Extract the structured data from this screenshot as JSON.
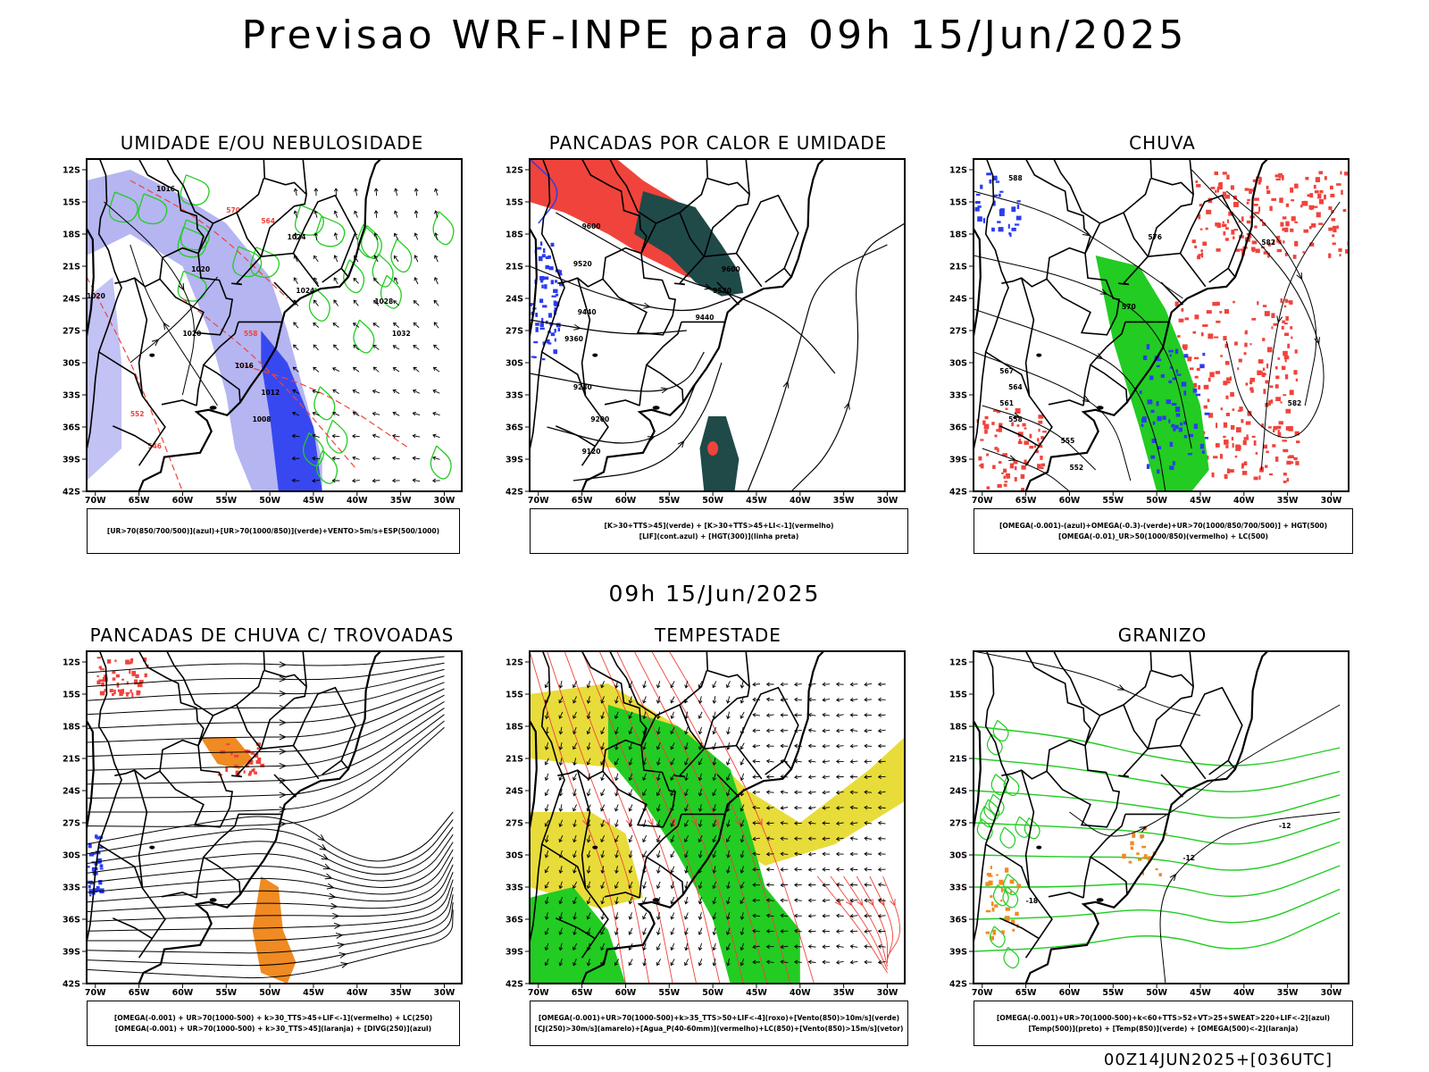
{
  "header": {
    "title": "Previsao WRF-INPE  para 09h 15/Jun/2025"
  },
  "middle_label": "09h 15/Jun/2025",
  "footer": "00Z14JUN2025+[036UTC]",
  "axes": {
    "lat_ticks": [
      "12S",
      "15S",
      "18S",
      "21S",
      "24S",
      "27S",
      "30S",
      "33S",
      "36S",
      "39S",
      "42S"
    ],
    "lon_ticks": [
      "70W",
      "65W",
      "60W",
      "55W",
      "50W",
      "45W",
      "40W",
      "35W",
      "30W"
    ],
    "lat_range": [
      -42,
      -11
    ],
    "lon_range": [
      -71,
      -28
    ]
  },
  "panels": [
    {
      "id": "umidade",
      "title": "UMIDADE E/OU NEBULOSIDADE",
      "legend": [
        "[UR>70(850/700/500)](azul)+[UR>70(1000/850)](verde)+VENTO>5m/s+ESP(500/1000)"
      ],
      "contour_labels": [
        "1016",
        "1020",
        "1024",
        "1020",
        "1016",
        "1012",
        "1008",
        "1020",
        "1024",
        "1028",
        "1032",
        "570",
        "564",
        "558",
        "552",
        "546"
      ]
    },
    {
      "id": "pancadas-calor",
      "title": "PANCADAS POR CALOR E UMIDADE",
      "legend": [
        "[K>30+TTS>45](verde) + [K>30+TTS>45+LI<-1](vermelho)",
        "[LIF](cont.azul) + [HGT(300)](linha preta)"
      ],
      "contour_labels": [
        "9600",
        "9520",
        "9440",
        "9360",
        "9280",
        "9200",
        "9120",
        "9600",
        "9520",
        "9440"
      ]
    },
    {
      "id": "chuva",
      "title": "CHUVA",
      "legend": [
        "[OMEGA(-0.001)-(azul)+OMEGA(-0.3)-(verde)+UR>70(1000/850/700/500)] + HGT(500)",
        "[OMEGA(-0.01)_UR>50(1000/850)(vermelho) + LC(500)"
      ],
      "contour_labels": [
        "588",
        "582",
        "576",
        "570",
        "567",
        "564",
        "561",
        "558",
        "555",
        "552",
        "582"
      ]
    },
    {
      "id": "pancadas-trovoadas",
      "title": "PANCADAS DE CHUVA C/ TROVOADAS",
      "legend": [
        "[OMEGA(-0.001) + UR>70(1000-500) + k>30_TTS>45+LIF<-1](vermelho) + LC(250)",
        "[OMEGA(-0.001) + UR>70(1000-500) + k>30_TTS>45](laranja) + [DIVG(250)](azul)"
      ],
      "contour_labels": []
    },
    {
      "id": "tempestade",
      "title": "TEMPESTADE",
      "legend": [
        "[OMEGA(-0.001)+UR>70(1000-500)+k>35_TTS>50+LIF<-4](roxo)+[Vento(850)>10m/s](verde)",
        "[CJ(250)>30m/s](amarelo)+[Agua_P(40-60mm)](vermelho)+LC(850)+[Vento(850)>15m/s](vetor)"
      ],
      "contour_labels": []
    },
    {
      "id": "granizo",
      "title": "GRANIZO",
      "legend": [
        "[OMEGA(-0.001)+UR>70(1000-500)+k<60+TTS>52+VT>25+SWEAT>220+LIF<-2](azul)",
        "[Temp(500)](preto) + [Temp(850)](verde) + [OMEGA(500)<-2](laranja)"
      ],
      "contour_labels": [
        "-12",
        "-12",
        "-18"
      ]
    }
  ],
  "colors": {
    "red": "#f0433b",
    "green": "#22cc22",
    "blue": "#2a3cf0",
    "light_blue": "#a8a8f0",
    "dark_teal": "#1f4a48",
    "yellow": "#e8dc3a",
    "orange": "#f08a22",
    "purple": "#8a2be2"
  }
}
